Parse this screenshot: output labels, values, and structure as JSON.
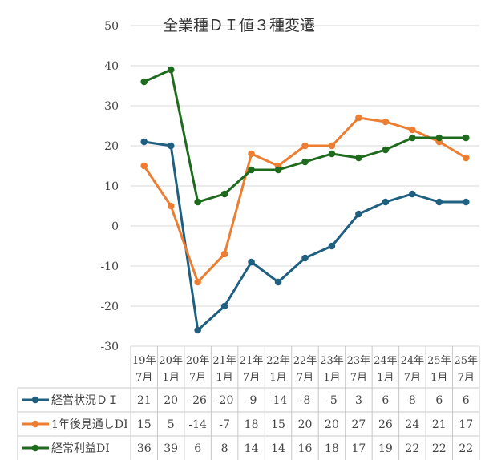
{
  "chart_data": {
    "type": "line",
    "title": "全業種ＤＩ値３種変遷",
    "xlabel": "",
    "ylabel": "",
    "ylim": [
      -30,
      50
    ],
    "yticks": [
      50,
      40,
      30,
      20,
      10,
      0,
      -10,
      -20,
      -30
    ],
    "grid": true,
    "legend_position": "table-left",
    "categories": [
      [
        "19年",
        "7月"
      ],
      [
        "20年",
        "1月"
      ],
      [
        "20年",
        "7月"
      ],
      [
        "21年",
        "1月"
      ],
      [
        "21年",
        "7月"
      ],
      [
        "22年",
        "1月"
      ],
      [
        "22年",
        "7月"
      ],
      [
        "23年",
        "1月"
      ],
      [
        "23年",
        "7月"
      ],
      [
        "24年",
        "1月"
      ],
      [
        "24年",
        "7月"
      ],
      [
        "25年",
        "1月"
      ],
      [
        "25年",
        "7月"
      ]
    ],
    "series": [
      {
        "name": "経営状況ＤＩ",
        "color": "#1f5f80",
        "values": [
          21,
          20,
          -26,
          -20,
          -9,
          -14,
          -8,
          -5,
          3,
          6,
          8,
          6,
          6
        ]
      },
      {
        "name": "1年後見通しDI",
        "color": "#ed7d31",
        "values": [
          15,
          5,
          -14,
          -7,
          18,
          15,
          20,
          20,
          27,
          26,
          24,
          21,
          17
        ]
      },
      {
        "name": "経常利益DI",
        "color": "#1e6b1e",
        "values": [
          36,
          39,
          6,
          8,
          14,
          14,
          16,
          18,
          17,
          19,
          22,
          22,
          22
        ]
      }
    ]
  }
}
